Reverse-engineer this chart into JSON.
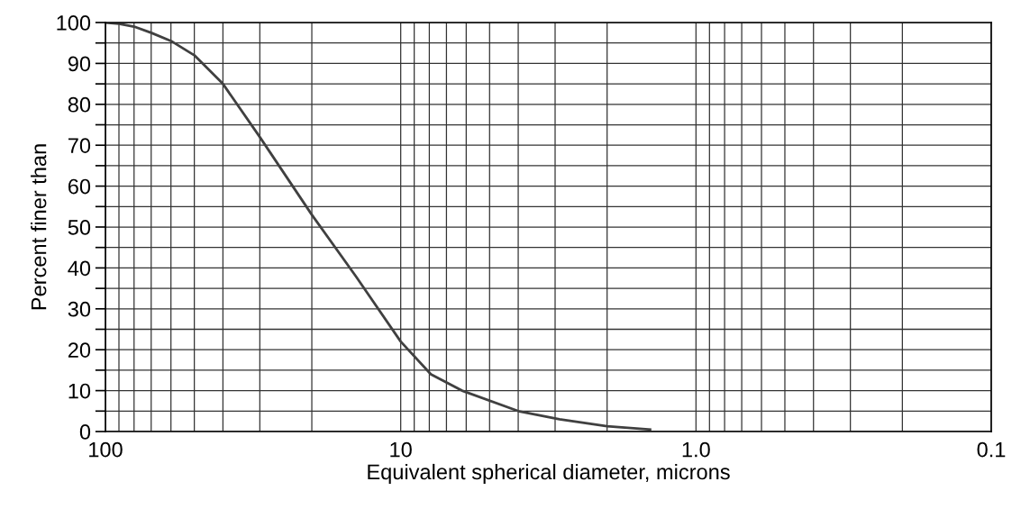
{
  "chart_data": {
    "type": "line",
    "xlabel": "Equivalent spherical diameter, microns",
    "ylabel": "Percent finer than",
    "log": "x",
    "series": [
      {
        "color": "#404040",
        "x": [
          100,
          90,
          80,
          70,
          60,
          50,
          40,
          30,
          20,
          14.2,
          10,
          7.9,
          6.2,
          4,
          2.9,
          2,
          1.43
        ],
        "values": [
          100,
          99.7,
          99,
          97.5,
          95.5,
          92,
          85,
          72,
          53,
          38,
          22,
          14,
          10,
          5,
          3,
          1.3,
          0.5
        ]
      }
    ],
    "xlim": [
      100,
      0.1
    ],
    "ylim": [
      0,
      100
    ],
    "xticks": [
      100,
      {
        "value": 90,
        "label": null
      },
      {
        "value": 80,
        "label": null
      },
      {
        "value": 70,
        "label": null
      },
      {
        "value": 60,
        "label": null
      },
      {
        "value": 50,
        "label": null
      },
      {
        "value": 40,
        "label": null
      },
      {
        "value": 30,
        "label": null
      },
      {
        "value": 20,
        "label": null
      },
      10,
      {
        "value": 9,
        "label": null
      },
      {
        "value": 8,
        "label": null
      },
      {
        "value": 7,
        "label": null
      },
      {
        "value": 6,
        "label": null
      },
      {
        "value": 5,
        "label": null
      },
      {
        "value": 4,
        "label": null
      },
      {
        "value": 3,
        "label": null
      },
      {
        "value": 2,
        "label": null
      },
      {
        "value": 1,
        "label": "1.0"
      },
      {
        "value": 0.9,
        "label": null
      },
      {
        "value": 0.8,
        "label": null
      },
      {
        "value": 0.7,
        "label": null
      },
      {
        "value": 0.6,
        "label": null
      },
      {
        "value": 0.5,
        "label": null
      },
      {
        "value": 0.4,
        "label": null
      },
      {
        "value": 0.3,
        "label": null
      },
      {
        "value": 0.2,
        "label": null
      },
      0.1
    ],
    "yticks": [
      0,
      {
        "value": 5,
        "label": null
      },
      10,
      {
        "value": 15,
        "label": null
      },
      20,
      {
        "value": 25,
        "label": null
      },
      30,
      {
        "value": 35,
        "label": null
      },
      40,
      {
        "value": 45,
        "label": null
      },
      50,
      {
        "value": 55,
        "label": null
      },
      60,
      {
        "value": 65,
        "label": null
      },
      70,
      {
        "value": 75,
        "label": null
      },
      80,
      {
        "value": 85,
        "label": null
      },
      90,
      {
        "value": 95,
        "label": null
      },
      100
    ],
    "grid": true,
    "marker": "none",
    "line_style": "solid"
  }
}
